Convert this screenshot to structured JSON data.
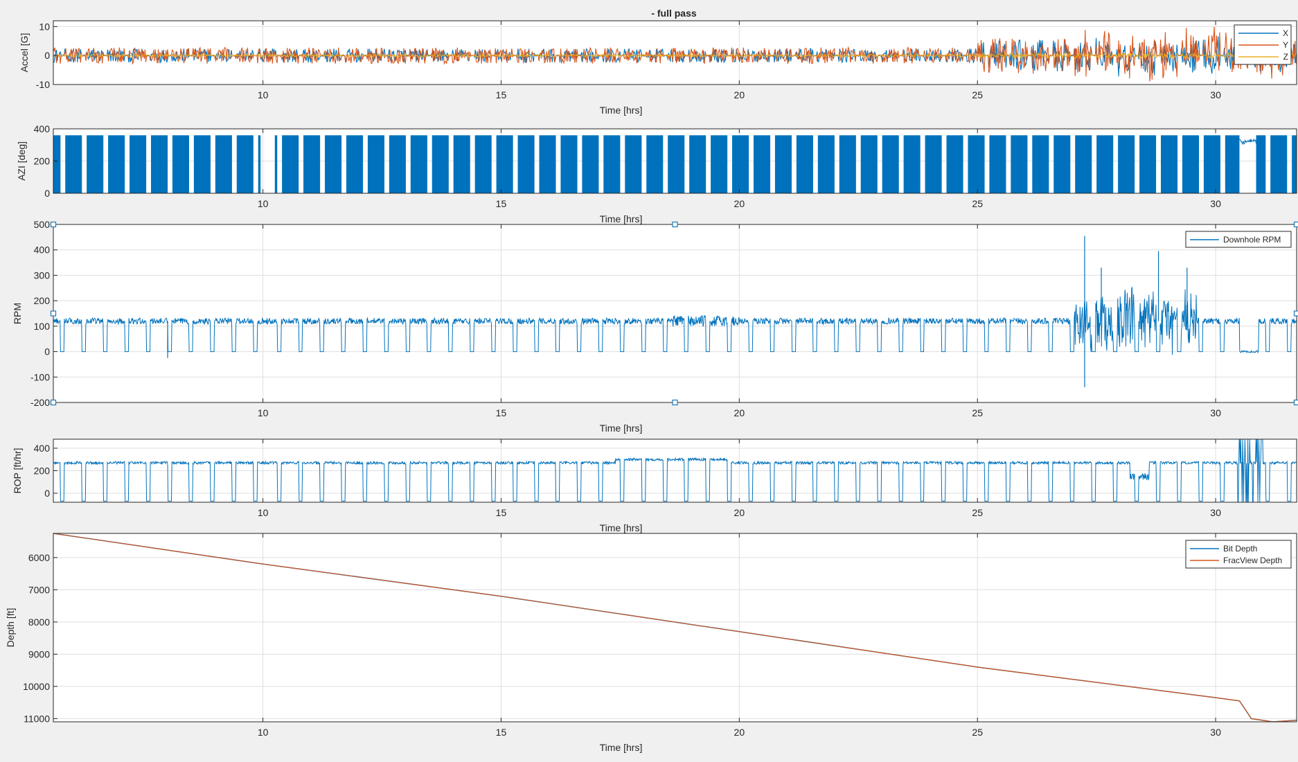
{
  "figure": {
    "title": "- full pass",
    "background": "#f0f0f0",
    "colors": {
      "blue": "#0072bd",
      "orange": "#d95319",
      "yellow": "#edb120",
      "grid": "#dfdfdf",
      "axis": "#262626",
      "handle": "#1f77b4"
    }
  },
  "chart_data": [
    {
      "id": "accel",
      "type": "line",
      "title": "- full pass",
      "xlabel": "Time [hrs]",
      "ylabel": "Accel [G]",
      "xlim": [
        5.6,
        31.7
      ],
      "ylim": [
        -10,
        12
      ],
      "xticks": [
        10,
        15,
        20,
        25,
        30
      ],
      "xticklabels": [
        "10",
        "15",
        "20",
        "25",
        "30"
      ],
      "yticks": [
        -10,
        0,
        10
      ],
      "yticklabels": [
        "-10",
        "0",
        "10"
      ],
      "grid": true,
      "legend": {
        "position": "top-right",
        "entries": [
          "X",
          "Y",
          "Z"
        ]
      },
      "series": [
        {
          "name": "X",
          "color": "#0072bd",
          "description": "noisy lateral accel around 0 G, amplitude about ±4 G until 25 h, up to ±10 G after",
          "center": 0,
          "amp_before": 4,
          "amp_after": 9
        },
        {
          "name": "Y",
          "color": "#d95319",
          "description": "noisy accel around 0 G, similar amplitude to X",
          "center": 0,
          "amp_before": 4,
          "amp_after": 9
        },
        {
          "name": "Z",
          "color": "#edb120",
          "description": "axial accel near 0 G, small amplitude",
          "center": 0,
          "amp_before": 0.8,
          "amp_after": 1.5
        }
      ],
      "connection_gaps_hrs": [
        5.75,
        6.2,
        6.65,
        7.1,
        7.55,
        8.0,
        8.45,
        8.9,
        9.35,
        9.8,
        10.3,
        10.75,
        11.2,
        11.65,
        12.1,
        12.55,
        13.0,
        13.45,
        13.9,
        14.35,
        14.8,
        15.25,
        15.7,
        16.15,
        16.6,
        17.05,
        17.5,
        17.95,
        18.4,
        18.85,
        19.3,
        19.75,
        20.2,
        20.65,
        21.1,
        21.55,
        22.0,
        22.45,
        22.9,
        23.35,
        23.8,
        24.25,
        24.7,
        25.15,
        25.6,
        26.05,
        26.5,
        26.95,
        27.4,
        27.85,
        28.3,
        28.75,
        29.2,
        29.65,
        30.1,
        30.55,
        31.05,
        31.5
      ]
    },
    {
      "id": "azi",
      "type": "area",
      "xlabel": "Time [hrs]",
      "ylabel": "AZI [deg]",
      "xlim": [
        5.6,
        31.7
      ],
      "ylim": [
        0,
        400
      ],
      "xticks": [
        10,
        15,
        20,
        25,
        30
      ],
      "xticklabels": [
        "10",
        "15",
        "20",
        "25",
        "30"
      ],
      "yticks": [
        0,
        200,
        400
      ],
      "yticklabels": [
        "0",
        "200",
        "400"
      ],
      "grid": true,
      "series": [
        {
          "color": "#0072bd",
          "description": "tool azimuth cycling 0–360 deg while rotating, fills band",
          "high": 360,
          "low": 0
        }
      ],
      "blank_intervals_hrs": [
        [
          9.95,
          10.25
        ],
        [
          30.5,
          30.85
        ]
      ],
      "connection_gaps_hrs": [
        5.75,
        6.2,
        6.65,
        7.1,
        7.55,
        8.0,
        8.45,
        8.9,
        9.35,
        9.8,
        10.3,
        10.75,
        11.2,
        11.65,
        12.1,
        12.55,
        13.0,
        13.45,
        13.9,
        14.35,
        14.8,
        15.25,
        15.7,
        16.15,
        16.6,
        17.05,
        17.5,
        17.95,
        18.4,
        18.85,
        19.3,
        19.75,
        20.2,
        20.65,
        21.1,
        21.55,
        22.0,
        22.45,
        22.9,
        23.35,
        23.8,
        24.25,
        24.7,
        25.15,
        25.6,
        26.05,
        26.5,
        26.95,
        27.4,
        27.85,
        28.3,
        28.75,
        29.2,
        29.65,
        30.1,
        31.05,
        31.5
      ]
    },
    {
      "id": "rpm",
      "type": "line",
      "xlabel": "Time [hrs]",
      "ylabel": "RPM",
      "xlim": [
        5.6,
        31.7
      ],
      "ylim": [
        -200,
        500
      ],
      "xticks": [
        10,
        15,
        20,
        25,
        30
      ],
      "xticklabels": [
        "10",
        "15",
        "20",
        "25",
        "30"
      ],
      "yticks": [
        -200,
        -100,
        0,
        100,
        200,
        300,
        400,
        500
      ],
      "yticklabels": [
        "-200",
        "-100",
        "0",
        "100",
        "200",
        "300",
        "400",
        "500"
      ],
      "grid": true,
      "legend": {
        "position": "top-right",
        "entries": [
          "Downhole RPM"
        ]
      },
      "series": [
        {
          "name": "Downhole RPM",
          "color": "#0072bd",
          "description": "about 120 RPM while drilling, dropping to 0 at each connection; large spikes 27–29.5 h (max ~450, min ~-140)",
          "center": 120,
          "stopped": 0
        }
      ],
      "notable_points": [
        {
          "x": 27.25,
          "y": 455
        },
        {
          "x": 27.25,
          "y": -140
        },
        {
          "x": 27.6,
          "y": 330
        },
        {
          "x": 28.8,
          "y": 395
        },
        {
          "x": 29.4,
          "y": 330
        },
        {
          "x": 8.0,
          "y": -25
        }
      ],
      "connection_gaps_hrs": [
        5.75,
        6.2,
        6.65,
        7.1,
        7.55,
        8.0,
        8.45,
        8.9,
        9.35,
        9.8,
        10.3,
        10.75,
        11.2,
        11.65,
        12.1,
        12.55,
        13.0,
        13.45,
        13.9,
        14.35,
        14.8,
        15.25,
        15.7,
        16.15,
        16.6,
        17.05,
        17.5,
        17.95,
        18.4,
        18.85,
        19.3,
        19.75,
        20.2,
        20.65,
        21.1,
        21.55,
        22.0,
        22.45,
        22.9,
        23.35,
        23.8,
        24.25,
        24.7,
        25.15,
        25.6,
        26.05,
        26.5,
        26.95,
        27.4,
        27.85,
        28.3,
        28.75,
        29.2,
        29.65,
        30.1,
        31.05,
        31.5
      ]
    },
    {
      "id": "rop",
      "type": "line",
      "xlabel": "Time [hrs]",
      "ylabel": "ROP [ft/hr]",
      "xlim": [
        5.6,
        31.7
      ],
      "ylim": [
        -80,
        480
      ],
      "xticks": [
        10,
        15,
        20,
        25,
        30
      ],
      "xticklabels": [
        "10",
        "15",
        "20",
        "25",
        "30"
      ],
      "yticks": [
        0,
        200,
        400
      ],
      "yticklabels": [
        "0",
        "200",
        "400"
      ],
      "grid": true,
      "series": [
        {
          "name": "ROP",
          "color": "#0072bd",
          "description": "about 270 ft/hr while drilling, dropping below 0 at connections; spikes near 30.5–31 h",
          "center": 270,
          "stopped": -70
        }
      ],
      "connection_gaps_hrs": [
        5.75,
        6.2,
        6.65,
        7.1,
        7.55,
        8.0,
        8.45,
        8.9,
        9.35,
        9.8,
        10.3,
        10.75,
        11.2,
        11.65,
        12.1,
        12.55,
        13.0,
        13.45,
        13.9,
        14.35,
        14.8,
        15.25,
        15.7,
        16.15,
        16.6,
        17.05,
        17.5,
        17.95,
        18.4,
        18.85,
        19.3,
        19.75,
        20.2,
        20.65,
        21.1,
        21.55,
        22.0,
        22.45,
        22.9,
        23.35,
        23.8,
        24.25,
        24.7,
        25.15,
        25.6,
        26.05,
        26.5,
        26.95,
        27.4,
        27.85,
        28.3,
        28.75,
        29.2,
        29.65,
        30.1,
        31.05,
        31.5
      ]
    },
    {
      "id": "depth",
      "type": "line",
      "xlabel": "Time [hrs]",
      "ylabel": "Depth [ft]",
      "xlim": [
        5.6,
        31.7
      ],
      "ylim": [
        5250,
        11100
      ],
      "y_reversed": true,
      "xticks": [
        10,
        15,
        20,
        25,
        30
      ],
      "xticklabels": [
        "10",
        "15",
        "20",
        "25",
        "30"
      ],
      "yticks": [
        6000,
        7000,
        8000,
        9000,
        10000,
        11000
      ],
      "yticklabels": [
        "6000",
        "7000",
        "8000",
        "9000",
        "10000",
        "11000"
      ],
      "grid": true,
      "legend": {
        "position": "top-right",
        "entries": [
          "Bit Depth",
          "FracView Depth"
        ]
      },
      "series": [
        {
          "name": "Bit Depth",
          "color": "#0072bd",
          "x": [
            5.6,
            10,
            15,
            20,
            25,
            30,
            30.5,
            30.75,
            31.2,
            31.7
          ],
          "y": [
            5250,
            6200,
            7200,
            8300,
            9400,
            10350,
            10450,
            11000,
            11100,
            11050
          ]
        },
        {
          "name": "FracView Depth",
          "color": "#d95319",
          "x": [
            5.6,
            10,
            15,
            20,
            25,
            30,
            30.5,
            30.75,
            31.2,
            31.7
          ],
          "y": [
            5250,
            6200,
            7200,
            8300,
            9400,
            10350,
            10450,
            11000,
            11100,
            11050
          ]
        }
      ]
    }
  ]
}
